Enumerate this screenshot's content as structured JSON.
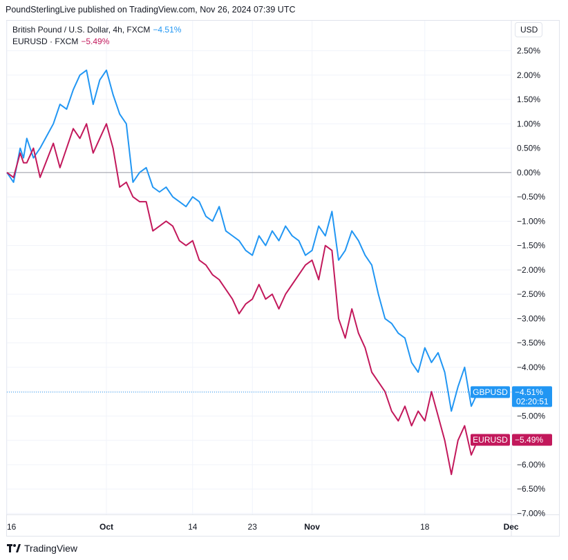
{
  "attribution": "PoundSterlingLive published on TradingView.com, Nov 26, 2024 07:39 UTC",
  "legend": [
    {
      "label": "British Pound / U.S. Dollar, 4h, FXCM",
      "value": "−4.51%",
      "color": "#2196f3"
    },
    {
      "label": "EURUSD · FXCM",
      "value": "−5.49%",
      "color": "#c2185b"
    }
  ],
  "currency_button": "USD",
  "footer": {
    "brand": "TradingView"
  },
  "chart_data": {
    "type": "line",
    "y_unit": "%",
    "ylim": [
      -7.0,
      2.75
    ],
    "x_range_days": [
      "2024-09-16",
      "2024-12-01"
    ],
    "y_ticks": [
      {
        "value": 2.5,
        "label": "2.50%"
      },
      {
        "value": 2.0,
        "label": "2.00%"
      },
      {
        "value": 1.5,
        "label": "1.50%"
      },
      {
        "value": 1.0,
        "label": "1.00%"
      },
      {
        "value": 0.5,
        "label": "0.50%"
      },
      {
        "value": 0.0,
        "label": "0.00%"
      },
      {
        "value": -0.5,
        "label": "−0.50%"
      },
      {
        "value": -1.0,
        "label": "−1.00%"
      },
      {
        "value": -1.5,
        "label": "−1.50%"
      },
      {
        "value": -2.0,
        "label": "−2.00%"
      },
      {
        "value": -2.5,
        "label": "−2.50%"
      },
      {
        "value": -3.0,
        "label": "−3.00%"
      },
      {
        "value": -3.5,
        "label": "−3.50%"
      },
      {
        "value": -4.0,
        "label": "−4.00%"
      },
      {
        "value": -4.5,
        "label": "−4.50%"
      },
      {
        "value": -5.0,
        "label": "−5.00%"
      },
      {
        "value": -5.5,
        "label": "−5.50%"
      },
      {
        "value": -6.0,
        "label": "−6.00%"
      },
      {
        "value": -6.5,
        "label": "−6.50%"
      },
      {
        "value": -7.0,
        "label": "−7.00%"
      }
    ],
    "x_ticks": [
      {
        "date": "2024-09-16",
        "label": "16",
        "bold": false
      },
      {
        "date": "2024-10-01",
        "label": "Oct",
        "bold": true
      },
      {
        "date": "2024-10-14",
        "label": "14",
        "bold": false
      },
      {
        "date": "2024-10-23",
        "label": "23",
        "bold": false
      },
      {
        "date": "2024-11-01",
        "label": "Nov",
        "bold": true
      },
      {
        "date": "2024-11-18",
        "label": "18",
        "bold": false
      },
      {
        "date": "2024-12-01",
        "label": "Dec",
        "bold": true
      }
    ],
    "series": [
      {
        "name": "GBPUSD",
        "color": "#2196f3",
        "last_label": "−4.51%",
        "countdown": "02:20:51",
        "points": [
          [
            "2024-09-16",
            0.0
          ],
          [
            "2024-09-17",
            -0.2
          ],
          [
            "2024-09-18",
            0.5
          ],
          [
            "2024-09-18T12:00",
            0.3
          ],
          [
            "2024-09-19",
            0.7
          ],
          [
            "2024-09-20",
            0.3
          ],
          [
            "2024-09-21",
            0.5
          ],
          [
            "2024-09-23",
            1.0
          ],
          [
            "2024-09-24",
            1.4
          ],
          [
            "2024-09-25",
            1.3
          ],
          [
            "2024-09-26",
            1.7
          ],
          [
            "2024-09-27",
            2.0
          ],
          [
            "2024-09-28",
            2.1
          ],
          [
            "2024-09-29",
            1.4
          ],
          [
            "2024-09-30",
            1.9
          ],
          [
            "2024-10-01",
            2.1
          ],
          [
            "2024-10-02",
            1.6
          ],
          [
            "2024-10-03",
            1.2
          ],
          [
            "2024-10-04",
            1.0
          ],
          [
            "2024-10-05",
            -0.2
          ],
          [
            "2024-10-06",
            0.0
          ],
          [
            "2024-10-07",
            0.1
          ],
          [
            "2024-10-08",
            -0.3
          ],
          [
            "2024-10-09",
            -0.4
          ],
          [
            "2024-10-10",
            -0.3
          ],
          [
            "2024-10-11",
            -0.5
          ],
          [
            "2024-10-12",
            -0.6
          ],
          [
            "2024-10-13",
            -0.7
          ],
          [
            "2024-10-14",
            -0.5
          ],
          [
            "2024-10-15",
            -0.6
          ],
          [
            "2024-10-16",
            -0.9
          ],
          [
            "2024-10-17",
            -1.0
          ],
          [
            "2024-10-18",
            -0.7
          ],
          [
            "2024-10-19",
            -1.2
          ],
          [
            "2024-10-20",
            -1.3
          ],
          [
            "2024-10-21",
            -1.4
          ],
          [
            "2024-10-22",
            -1.6
          ],
          [
            "2024-10-23",
            -1.7
          ],
          [
            "2024-10-24",
            -1.3
          ],
          [
            "2024-10-25",
            -1.5
          ],
          [
            "2024-10-26",
            -1.2
          ],
          [
            "2024-10-27",
            -1.4
          ],
          [
            "2024-10-28",
            -1.1
          ],
          [
            "2024-10-29",
            -1.3
          ],
          [
            "2024-10-30",
            -1.4
          ],
          [
            "2024-10-31",
            -1.7
          ],
          [
            "2024-11-01",
            -1.6
          ],
          [
            "2024-11-02",
            -1.1
          ],
          [
            "2024-11-03",
            -1.3
          ],
          [
            "2024-11-04",
            -0.8
          ],
          [
            "2024-11-05",
            -1.8
          ],
          [
            "2024-11-06",
            -1.6
          ],
          [
            "2024-11-07",
            -1.2
          ],
          [
            "2024-11-08",
            -1.4
          ],
          [
            "2024-11-09",
            -1.7
          ],
          [
            "2024-11-10",
            -1.9
          ],
          [
            "2024-11-11",
            -2.5
          ],
          [
            "2024-11-12",
            -3.0
          ],
          [
            "2024-11-13",
            -3.1
          ],
          [
            "2024-11-14",
            -3.3
          ],
          [
            "2024-11-15",
            -3.4
          ],
          [
            "2024-11-16",
            -3.9
          ],
          [
            "2024-11-17",
            -4.1
          ],
          [
            "2024-11-18",
            -3.6
          ],
          [
            "2024-11-19",
            -3.9
          ],
          [
            "2024-11-20",
            -3.7
          ],
          [
            "2024-11-21",
            -4.1
          ],
          [
            "2024-11-22",
            -4.9
          ],
          [
            "2024-11-23",
            -4.4
          ],
          [
            "2024-11-24",
            -4.0
          ],
          [
            "2024-11-25",
            -4.8
          ],
          [
            "2024-11-26",
            -4.51
          ]
        ]
      },
      {
        "name": "EURUSD",
        "color": "#c2185b",
        "last_label": "−5.49%",
        "points": [
          [
            "2024-09-16",
            0.0
          ],
          [
            "2024-09-17",
            -0.1
          ],
          [
            "2024-09-18",
            0.4
          ],
          [
            "2024-09-18T12:00",
            0.2
          ],
          [
            "2024-09-19",
            0.2
          ],
          [
            "2024-09-20",
            0.5
          ],
          [
            "2024-09-21",
            -0.1
          ],
          [
            "2024-09-23",
            0.6
          ],
          [
            "2024-09-24",
            0.1
          ],
          [
            "2024-09-25",
            0.5
          ],
          [
            "2024-09-26",
            0.9
          ],
          [
            "2024-09-27",
            0.7
          ],
          [
            "2024-09-28",
            1.0
          ],
          [
            "2024-09-29",
            0.4
          ],
          [
            "2024-09-30",
            0.7
          ],
          [
            "2024-10-01",
            1.0
          ],
          [
            "2024-10-02",
            0.5
          ],
          [
            "2024-10-03",
            -0.3
          ],
          [
            "2024-10-04",
            -0.2
          ],
          [
            "2024-10-05",
            -0.5
          ],
          [
            "2024-10-06",
            -0.6
          ],
          [
            "2024-10-07",
            -0.6
          ],
          [
            "2024-10-08",
            -1.2
          ],
          [
            "2024-10-09",
            -1.1
          ],
          [
            "2024-10-10",
            -1.0
          ],
          [
            "2024-10-11",
            -1.1
          ],
          [
            "2024-10-12",
            -1.4
          ],
          [
            "2024-10-13",
            -1.5
          ],
          [
            "2024-10-14",
            -1.4
          ],
          [
            "2024-10-15",
            -1.8
          ],
          [
            "2024-10-16",
            -1.9
          ],
          [
            "2024-10-17",
            -2.1
          ],
          [
            "2024-10-18",
            -2.2
          ],
          [
            "2024-10-19",
            -2.4
          ],
          [
            "2024-10-20",
            -2.6
          ],
          [
            "2024-10-21",
            -2.9
          ],
          [
            "2024-10-22",
            -2.7
          ],
          [
            "2024-10-23",
            -2.6
          ],
          [
            "2024-10-24",
            -2.3
          ],
          [
            "2024-10-25",
            -2.6
          ],
          [
            "2024-10-26",
            -2.5
          ],
          [
            "2024-10-27",
            -2.8
          ],
          [
            "2024-10-28",
            -2.5
          ],
          [
            "2024-10-29",
            -2.3
          ],
          [
            "2024-10-30",
            -2.1
          ],
          [
            "2024-10-31",
            -1.9
          ],
          [
            "2024-11-01",
            -1.8
          ],
          [
            "2024-11-02",
            -2.2
          ],
          [
            "2024-11-03",
            -1.5
          ],
          [
            "2024-11-04",
            -1.6
          ],
          [
            "2024-11-05",
            -3.0
          ],
          [
            "2024-11-06",
            -3.4
          ],
          [
            "2024-11-07",
            -2.8
          ],
          [
            "2024-11-08",
            -3.3
          ],
          [
            "2024-11-09",
            -3.6
          ],
          [
            "2024-11-10",
            -4.1
          ],
          [
            "2024-11-11",
            -4.3
          ],
          [
            "2024-11-12",
            -4.5
          ],
          [
            "2024-11-13",
            -4.9
          ],
          [
            "2024-11-14",
            -5.1
          ],
          [
            "2024-11-15",
            -4.8
          ],
          [
            "2024-11-16",
            -5.2
          ],
          [
            "2024-11-17",
            -4.9
          ],
          [
            "2024-11-18",
            -5.1
          ],
          [
            "2024-11-19",
            -4.5
          ],
          [
            "2024-11-20",
            -5.0
          ],
          [
            "2024-11-21",
            -5.5
          ],
          [
            "2024-11-22",
            -6.2
          ],
          [
            "2024-11-23",
            -5.5
          ],
          [
            "2024-11-24",
            -5.2
          ],
          [
            "2024-11-25",
            -5.8
          ],
          [
            "2024-11-26",
            -5.49
          ]
        ]
      }
    ]
  }
}
